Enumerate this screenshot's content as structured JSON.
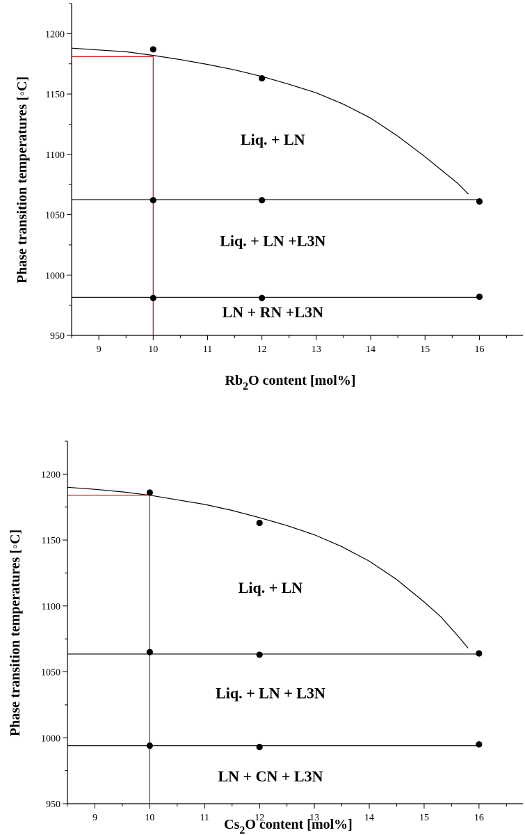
{
  "chart_data": [
    {
      "type": "scatter",
      "title": "",
      "xlabel_main": "Rb",
      "xlabel_sub": "2",
      "xlabel_rest": "O content [mol%]",
      "ylabel": "Phase transition temperatures [◦C]",
      "xlim": [
        8.5,
        16.8
      ],
      "ylim": [
        950,
        1225
      ],
      "xticks": [
        9,
        10,
        11,
        12,
        13,
        14,
        15,
        16
      ],
      "yticks": [
        950,
        1000,
        1050,
        1100,
        1150,
        1200
      ],
      "series": [
        {
          "x": [
            10,
            12
          ],
          "y": [
            1187,
            1163
          ]
        },
        {
          "x": [
            10,
            12,
            16
          ],
          "y": [
            1062,
            1062,
            1061
          ]
        },
        {
          "x": [
            10,
            12,
            16
          ],
          "y": [
            981,
            981,
            982
          ]
        }
      ],
      "liquidus_curve": {
        "x": [
          8.5,
          9,
          9.5,
          10,
          10.5,
          11,
          11.5,
          12,
          12.5,
          13,
          13.5,
          14,
          14.5,
          15,
          15.3,
          15.6,
          15.8
        ],
        "y": [
          1188,
          1186.5,
          1185,
          1182,
          1178.5,
          1174.5,
          1170,
          1164.5,
          1158,
          1151,
          1141.5,
          1130,
          1115,
          1098,
          1087,
          1076,
          1067
        ]
      },
      "horizontal_lines": [
        {
          "y": 1062.5,
          "x": [
            8.5,
            16
          ]
        },
        {
          "y": 981.5,
          "x": [
            8.5,
            16
          ]
        }
      ],
      "red_guides": {
        "x": 10,
        "y": 1181
      },
      "region_labels": [
        {
          "text": "Liq. + LN",
          "x": 12.2,
          "y": 1108
        },
        {
          "text": "Liq. + LN +L3N",
          "x": 12.2,
          "y": 1024
        },
        {
          "text": "LN + RN +L3N",
          "x": 12.2,
          "y": 965
        }
      ]
    },
    {
      "type": "scatter",
      "title": "",
      "xlabel_main": "Cs",
      "xlabel_sub": "2",
      "xlabel_rest": "O content [mol%]",
      "ylabel": "Phase transition temperatures [◦C]",
      "xlim": [
        8.5,
        16.8
      ],
      "ylim": [
        950,
        1225
      ],
      "xticks": [
        9,
        10,
        11,
        12,
        13,
        14,
        15,
        16
      ],
      "yticks": [
        950,
        1000,
        1050,
        1100,
        1150,
        1200
      ],
      "series": [
        {
          "x": [
            10,
            12
          ],
          "y": [
            1186,
            1163
          ]
        },
        {
          "x": [
            10,
            12,
            16
          ],
          "y": [
            1065,
            1063,
            1064
          ]
        },
        {
          "x": [
            10,
            12,
            16
          ],
          "y": [
            994,
            993,
            995
          ]
        }
      ],
      "liquidus_curve": {
        "x": [
          8.5,
          9,
          9.5,
          10,
          10.5,
          11,
          11.5,
          12,
          12.5,
          13,
          13.5,
          14,
          14.5,
          15,
          15.3,
          15.6,
          15.8
        ],
        "y": [
          1190,
          1188.5,
          1186.5,
          1184,
          1180.5,
          1177,
          1172.5,
          1167,
          1161,
          1154,
          1145,
          1134,
          1120,
          1103,
          1092,
          1078,
          1068
        ]
      },
      "horizontal_lines": [
        {
          "y": 1063.5,
          "x": [
            8.5,
            16
          ]
        },
        {
          "y": 994,
          "x": [
            8.5,
            16
          ]
        }
      ],
      "red_guides": {
        "x": 10,
        "y": 1184
      },
      "region_labels": [
        {
          "text": "Liq. + LN",
          "x": 12.2,
          "y": 1110
        },
        {
          "text": "Liq. + LN + L3N",
          "x": 12.2,
          "y": 1030
        },
        {
          "text": "LN + CN + L3N",
          "x": 12.2,
          "y": 967
        }
      ]
    }
  ],
  "colors": {
    "axis": "#000000",
    "points": "#000000",
    "curves": "#000000",
    "guides": "#dd0000"
  }
}
